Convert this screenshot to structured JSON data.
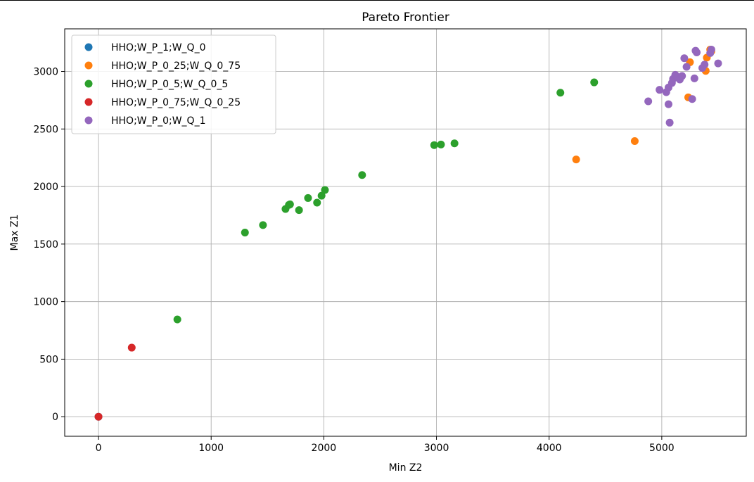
{
  "chart_data": {
    "type": "scatter",
    "title": "Pareto Frontier",
    "xlabel": "Min Z2",
    "ylabel": "Max Z1",
    "xlim": [
      -300,
      5750
    ],
    "ylim": [
      -170,
      3370
    ],
    "xticks": [
      0,
      1000,
      2000,
      3000,
      4000,
      5000
    ],
    "yticks": [
      0,
      500,
      1000,
      1500,
      2000,
      2500,
      3000
    ],
    "grid": true,
    "legend_position": "upper-left",
    "series": [
      {
        "name": "HHO;W_P_1;W_Q_0",
        "color": "#1f77b4",
        "points": [
          [
            0,
            0
          ]
        ]
      },
      {
        "name": "HHO;W_P_0_25;W_Q_0_75",
        "color": "#ff7f0e",
        "points": [
          [
            4240,
            2235
          ],
          [
            4760,
            2395
          ],
          [
            5235,
            2775
          ],
          [
            5250,
            3080
          ],
          [
            5390,
            3005
          ],
          [
            5400,
            3120
          ],
          [
            5430,
            3190
          ],
          [
            5440,
            3175
          ]
        ]
      },
      {
        "name": "HHO;W_P_0_5;W_Q_0_5",
        "color": "#2ca02c",
        "points": [
          [
            700,
            845
          ],
          [
            1300,
            1600
          ],
          [
            1460,
            1665
          ],
          [
            1660,
            1805
          ],
          [
            1690,
            1840
          ],
          [
            1700,
            1845
          ],
          [
            1780,
            1795
          ],
          [
            1860,
            1900
          ],
          [
            1940,
            1860
          ],
          [
            1980,
            1920
          ],
          [
            2010,
            1970
          ],
          [
            2340,
            2100
          ],
          [
            2980,
            2360
          ],
          [
            3040,
            2365
          ],
          [
            3160,
            2375
          ],
          [
            4100,
            2815
          ],
          [
            4400,
            2905
          ]
        ]
      },
      {
        "name": "HHO;W_P_0_75;W_Q_0_25",
        "color": "#d62728",
        "points": [
          [
            0,
            0
          ],
          [
            295,
            600
          ]
        ]
      },
      {
        "name": "HHO;W_P_0;W_Q_1",
        "color": "#9467bd",
        "points": [
          [
            4880,
            2740
          ],
          [
            4980,
            2840
          ],
          [
            5040,
            2820
          ],
          [
            5060,
            2860
          ],
          [
            5060,
            2715
          ],
          [
            5070,
            2555
          ],
          [
            5090,
            2900
          ],
          [
            5100,
            2935
          ],
          [
            5120,
            2970
          ],
          [
            5140,
            2950
          ],
          [
            5160,
            2930
          ],
          [
            5180,
            2960
          ],
          [
            5200,
            3115
          ],
          [
            5220,
            3040
          ],
          [
            5270,
            2760
          ],
          [
            5290,
            2940
          ],
          [
            5300,
            3180
          ],
          [
            5310,
            3165
          ],
          [
            5360,
            3030
          ],
          [
            5380,
            3060
          ],
          [
            5430,
            3160
          ],
          [
            5440,
            3190
          ],
          [
            5500,
            3070
          ]
        ]
      }
    ]
  }
}
